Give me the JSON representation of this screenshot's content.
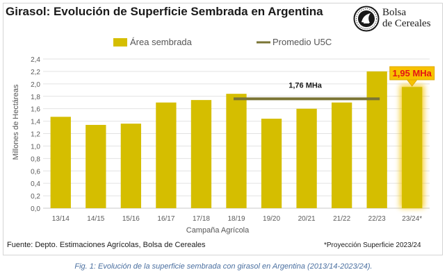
{
  "header": {
    "title": "Girasol: Evolución de Superficie Sembrada en Argentina"
  },
  "logo": {
    "line1": "Bolsa",
    "line2": "de Cereales",
    "icon": "bolsa-de-cereales-seal"
  },
  "footer": {
    "source": "Fuente:  Depto.  Estimaciones Agrícolas, Bolsa de Cereales",
    "note": "*Proyección Superficie 2023/24"
  },
  "caption": "Fig. 1: Evolución de la superficie sembrada con girasol en Argentina (2013/14-2023/24).",
  "chart_data": {
    "type": "bar",
    "categories": [
      "13/14",
      "14/15",
      "15/16",
      "16/17",
      "17/18",
      "18/19",
      "19/20",
      "20/21",
      "21/22",
      "22/23",
      "23/24*"
    ],
    "series": [
      {
        "name": "Área sembrada",
        "values": [
          1.47,
          1.34,
          1.36,
          1.7,
          1.74,
          1.84,
          1.44,
          1.6,
          1.7,
          2.2,
          1.95
        ],
        "color": "#d5be00"
      }
    ],
    "lines": [
      {
        "name": "Promedio U5C",
        "value": 1.76,
        "from": "18/19",
        "to": "22/23",
        "label": "1,76 MHa",
        "color": "#7a7434"
      }
    ],
    "highlight": {
      "category": "23/24*",
      "label": "1,95 MHa",
      "label_color": "#e41414",
      "box_color": "#f7c200"
    },
    "xlabel": "Campaña Agrícola",
    "ylabel": "Millones de Hectáreas",
    "ylim": [
      0,
      2.4
    ],
    "yticks": [
      "0,0",
      "0,2",
      "0,4",
      "0,6",
      "0,8",
      "1,0",
      "1,2",
      "1,4",
      "1,6",
      "1,8",
      "2,0",
      "2,2",
      "2,4"
    ],
    "grid": true,
    "legend": "top"
  }
}
